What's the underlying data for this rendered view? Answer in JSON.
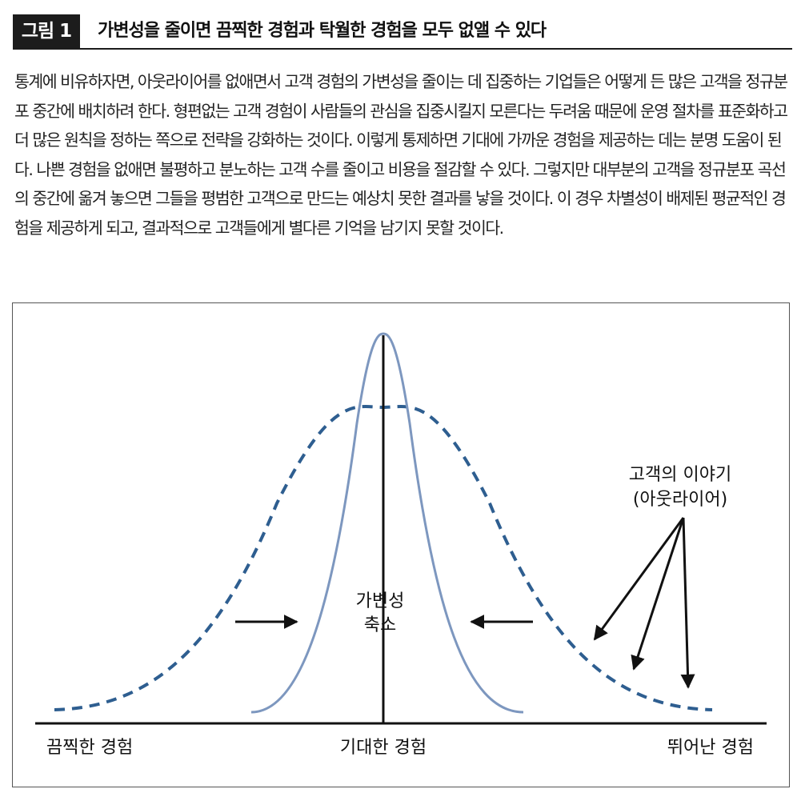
{
  "header": {
    "figure_number": "그림 1",
    "title": "가변성을 줄이면 끔찍한 경험과 탁월한 경험을 모두 없앨 수 있다"
  },
  "body_text": "통계에 비유하자면, 아웃라이어를 없애면서 고객 경험의 가변성을 줄이는 데 집중하는 기업들은 어떻게 든 많은 고객을 정규분포 중간에 배치하려 한다. 형편없는 고객 경험이 사람들의 관심을 집중시킬지 모른다는 두려움 때문에 운영 절차를 표준화하고 더 많은 원칙을 정하는 쪽으로 전략을 강화하는 것이다. 이렇게 통제하면 기대에 가까운 경험을 제공하는 데는 분명 도움이 된다. 나쁜 경험을 없애면 불평하고 분노하는 고객 수를 줄이고 비용을 절감할 수 있다. 그렇지만 대부분의 고객을 정규분포 곡선의 중간에 옮겨 놓으면 그들을 평범한 고객으로 만드는 예상치 못한 결과를 낳을 것이다. 이 경우 차별성이 배제된 평균적인 경험을 제공하게 되고, 결과적으로 고객들에게 별다른 기억을 남기지 못할 것이다.",
  "diagram": {
    "center_label_line1": "가변성",
    "center_label_line2": "축소",
    "outlier_label_line1": "고객의 이야기",
    "outlier_label_line2": "(아웃라이어)",
    "axis_left_label": "끔찍한 경험",
    "axis_center_label": "기대한 경험",
    "axis_right_label": "뛰어난 경험",
    "colors": {
      "curve": "#2e5e90",
      "narrow_curve": "#7d97bf",
      "axis": "#111111"
    }
  }
}
